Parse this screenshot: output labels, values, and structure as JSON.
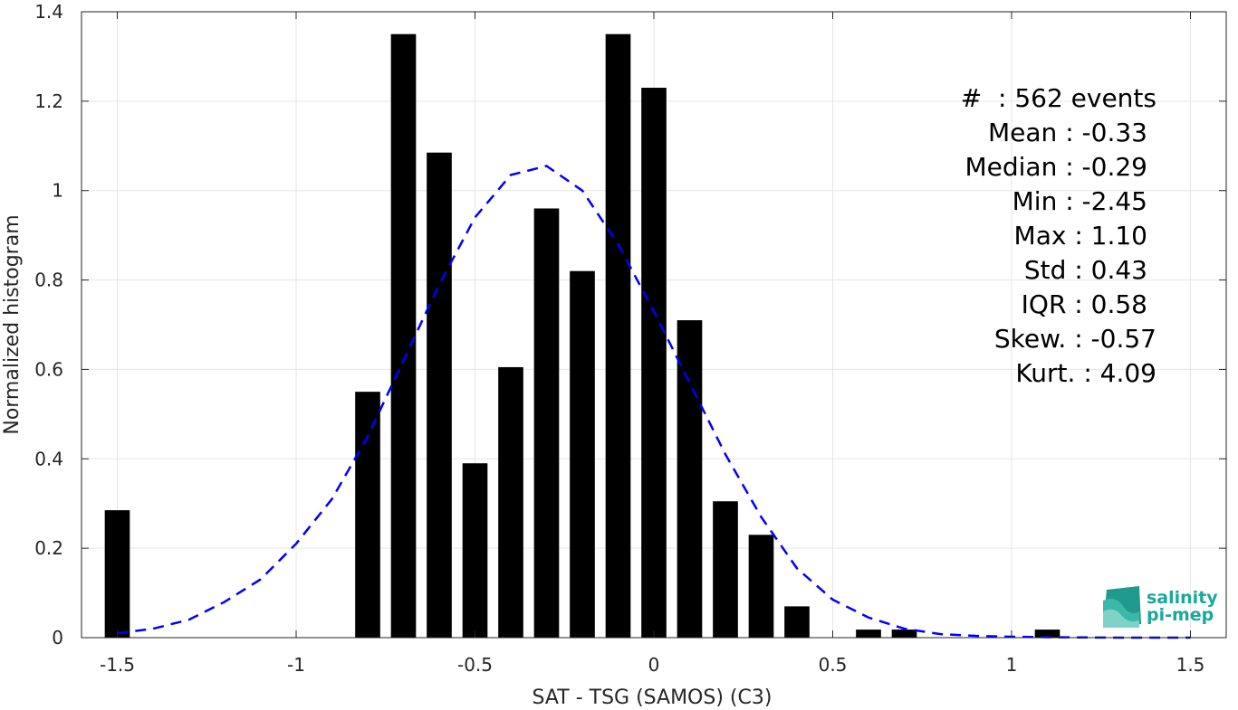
{
  "chart_data": {
    "type": "bar",
    "xlabel": "SAT - TSG (SAMOS) (C3)",
    "ylabel": "Normalized histogram",
    "xlim": [
      -1.6,
      1.6
    ],
    "ylim": [
      0,
      1.4
    ],
    "xticks": [
      -1.5,
      -1,
      -0.5,
      0,
      0.5,
      1,
      1.5
    ],
    "xtick_labels": [
      "-1.5",
      "-1",
      "-0.5",
      "0",
      "0.5",
      "1",
      "1.5"
    ],
    "yticks": [
      0,
      0.2,
      0.4,
      0.6,
      0.8,
      1,
      1.2,
      1.4
    ],
    "ytick_labels": [
      "0",
      "0.2",
      "0.4",
      "0.6",
      "0.8",
      "1",
      "1.2",
      "1.4"
    ],
    "grid": true,
    "bar_color": "#000000",
    "fit_color": "#0000ff",
    "bins": [
      {
        "x": -1.5,
        "y": 0.285
      },
      {
        "x": -0.8,
        "y": 0.55
      },
      {
        "x": -0.7,
        "y": 1.35
      },
      {
        "x": -0.6,
        "y": 1.085
      },
      {
        "x": -0.5,
        "y": 0.39
      },
      {
        "x": -0.4,
        "y": 0.605
      },
      {
        "x": -0.3,
        "y": 0.96
      },
      {
        "x": -0.2,
        "y": 0.82
      },
      {
        "x": -0.1,
        "y": 1.35
      },
      {
        "x": 0.0,
        "y": 1.23
      },
      {
        "x": 0.1,
        "y": 0.71
      },
      {
        "x": 0.2,
        "y": 0.305
      },
      {
        "x": 0.3,
        "y": 0.23
      },
      {
        "x": 0.4,
        "y": 0.07
      },
      {
        "x": 0.6,
        "y": 0.018
      },
      {
        "x": 0.7,
        "y": 0.018
      },
      {
        "x": 1.1,
        "y": 0.018
      }
    ],
    "fit_curve": {
      "style": "dashed",
      "x": [
        -1.5,
        -1.4,
        -1.3,
        -1.2,
        -1.1,
        -1.0,
        -0.9,
        -0.8,
        -0.7,
        -0.6,
        -0.5,
        -0.4,
        -0.3,
        -0.2,
        -0.1,
        0.0,
        0.1,
        0.2,
        0.3,
        0.4,
        0.5,
        0.6,
        0.7,
        0.8,
        0.9,
        1.0,
        1.1,
        1.2,
        1.3,
        1.4,
        1.5
      ],
      "y": [
        0.01,
        0.02,
        0.04,
        0.08,
        0.13,
        0.21,
        0.31,
        0.45,
        0.62,
        0.79,
        0.94,
        1.035,
        1.055,
        1.0,
        0.88,
        0.73,
        0.57,
        0.41,
        0.27,
        0.155,
        0.085,
        0.045,
        0.02,
        0.008,
        0.004,
        0.002,
        0.001,
        0.0005,
        0.0,
        0.0,
        0.0
      ]
    }
  },
  "stats": {
    "line1": "#  : 562 events",
    "line2": "Mean : -0.33",
    "line3": "Median : -0.29",
    "line4": "Min : -2.45",
    "line5": "Max : 1.10",
    "line6": "Std : 0.43",
    "line7": "IQR : 0.58",
    "line8": "Skew. : -0.57",
    "line9": "Kurt. : 4.09"
  },
  "logo": {
    "line1": "salinity",
    "line2": "pi-mep",
    "color": "#1aa89a"
  }
}
